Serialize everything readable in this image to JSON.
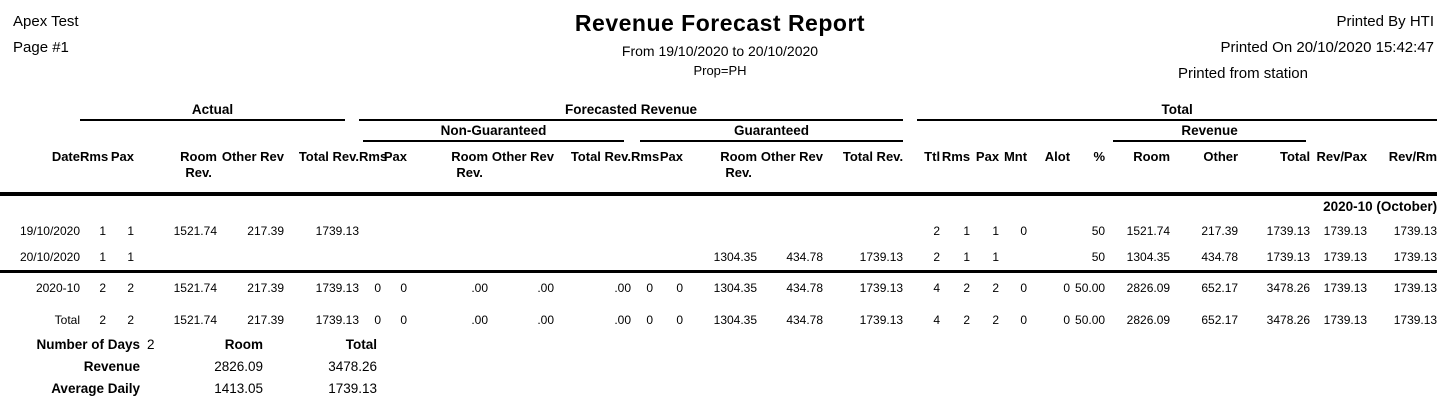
{
  "header": {
    "left": {
      "property": "Apex Test",
      "page": "Page #1"
    },
    "center": {
      "title": "Revenue Forecast Report",
      "date_range": "From 19/10/2020 to 20/10/2020",
      "prop": "Prop=PH"
    },
    "right": {
      "printed_by": "Printed By HTI",
      "printed_on": "Printed On 20/10/2020 15:42:47",
      "printed_from": "Printed from station"
    }
  },
  "table": {
    "groups": {
      "actual": "Actual",
      "forecasted": "Forecasted Revenue",
      "total": "Total",
      "non_guaranteed": "Non-Guaranteed",
      "guaranteed": "Guaranteed",
      "revenue": "Revenue"
    },
    "columns": [
      "Date",
      "Rms",
      "Pax",
      "Room\nRev.",
      "Other Rev",
      "Total Rev.",
      "Rms",
      "Pax",
      "Room\nRev.",
      "Other Rev",
      "Total Rev.",
      "Rms",
      "Pax",
      "Room\nRev.",
      "Other Rev",
      "Total Rev.",
      "Ttl",
      "Rms",
      "Pax",
      "Mnt",
      "Alot",
      "%",
      "Room",
      "Other",
      "Total",
      "Rev/Pax",
      "Rev/Rm"
    ],
    "month_header": "2020-10 (October)",
    "rows": [
      [
        "19/10/2020",
        "1",
        "1",
        "1521.74",
        "217.39",
        "1739.13",
        "",
        "",
        "",
        "",
        "",
        "",
        "",
        "",
        "",
        "",
        "2",
        "1",
        "1",
        "0",
        "",
        "50",
        "1521.74",
        "217.39",
        "1739.13",
        "1739.13",
        "1739.13"
      ],
      [
        "20/10/2020",
        "1",
        "1",
        "",
        "",
        "",
        "",
        "",
        "",
        "",
        "",
        "",
        "",
        "1304.35",
        "434.78",
        "1739.13",
        "2",
        "1",
        "1",
        "",
        "",
        "50",
        "1304.35",
        "434.78",
        "1739.13",
        "1739.13",
        "1739.13"
      ]
    ],
    "total_rows": [
      [
        "2020-10",
        "2",
        "2",
        "1521.74",
        "217.39",
        "1739.13",
        "0",
        "0",
        ".00",
        ".00",
        ".00",
        "0",
        "0",
        "1304.35",
        "434.78",
        "1739.13",
        "4",
        "2",
        "2",
        "0",
        "0",
        "50.00",
        "2826.09",
        "652.17",
        "3478.26",
        "1739.13",
        "1739.13"
      ],
      [
        "Total",
        "2",
        "2",
        "1521.74",
        "217.39",
        "1739.13",
        "0",
        "0",
        ".00",
        ".00",
        ".00",
        "0",
        "0",
        "1304.35",
        "434.78",
        "1739.13",
        "4",
        "2",
        "2",
        "0",
        "0",
        "50.00",
        "2826.09",
        "652.17",
        "3478.26",
        "1739.13",
        "1739.13"
      ]
    ]
  },
  "summary": {
    "number_of_days_label": "Number of Days",
    "number_of_days_value": "2",
    "room_label": "Room",
    "total_label": "Total",
    "revenue_label": "Revenue",
    "revenue_room": "2826.09",
    "revenue_total": "3478.26",
    "avg_daily_label": "Average Daily",
    "avg_daily_room": "1413.05",
    "avg_daily_total": "1739.13"
  }
}
